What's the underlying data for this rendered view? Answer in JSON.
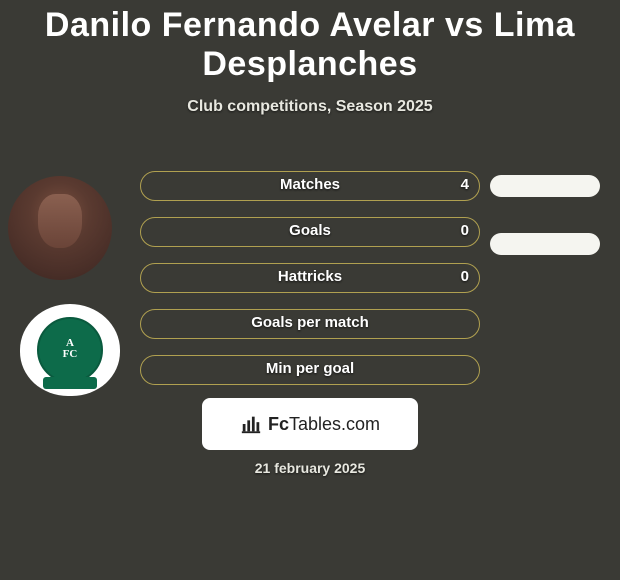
{
  "header": {
    "title": "Danilo Fernando Avelar vs Lima Desplanches",
    "subtitle": "Club competitions, Season 2025"
  },
  "colors": {
    "background": "#3a3a35",
    "pill_border": "#b0a050",
    "pill_right_bg": "#f5f5f0",
    "text": "#ffffff",
    "club_green": "#0d6b4a"
  },
  "stats": [
    {
      "label": "Matches",
      "left_value": "4",
      "right_pill": true
    },
    {
      "label": "Goals",
      "left_value": "0",
      "right_pill": true
    },
    {
      "label": "Hattricks",
      "left_value": "0",
      "right_pill": false
    },
    {
      "label": "Goals per match",
      "left_value": "",
      "right_pill": false
    },
    {
      "label": "Min per goal",
      "left_value": "",
      "right_pill": false
    }
  ],
  "club_badge": {
    "monogram_top": "A",
    "monogram_bottom": "FC"
  },
  "footer": {
    "brand_a": "Fc",
    "brand_b": "Tables.com",
    "date": "21 february 2025"
  }
}
